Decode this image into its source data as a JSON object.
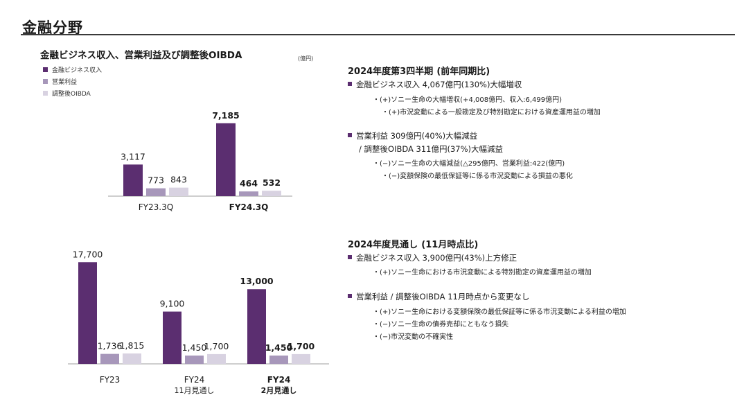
{
  "page_title": "金融分野",
  "chart_heading": "金融ビジネス収入、営業利益及び調整後OIBDA",
  "unit_label": "(億円)",
  "colors": {
    "revenue": "#5b2e70",
    "op_income": "#a797ba",
    "oibda": "#d8d2e1"
  },
  "legend": [
    "金融ビジネス収入",
    "営業利益",
    "調整後OIBDA"
  ],
  "chart_data": [
    {
      "type": "bar",
      "categories": [
        "FY23.3Q",
        "FY24.3Q"
      ],
      "bold_categories": [
        false,
        true
      ],
      "series": [
        {
          "name": "金融ビジネス収入",
          "values": [
            3117,
            7185
          ]
        },
        {
          "name": "営業利益",
          "values": [
            773,
            464
          ]
        },
        {
          "name": "調整後OIBDA",
          "values": [
            843,
            532
          ]
        }
      ],
      "value_labels": [
        [
          "3,117",
          "773",
          "843"
        ],
        [
          "7,185",
          "464",
          "532"
        ]
      ],
      "ylim": [
        0,
        8200
      ],
      "grid": false,
      "legend_position": "top-left"
    },
    {
      "type": "bar",
      "categories": [
        "FY23",
        "FY24\n11月見通し",
        "FY24\n2月見通し"
      ],
      "bold_categories": [
        false,
        false,
        true
      ],
      "series": [
        {
          "name": "金融ビジネス収入",
          "values": [
            17700,
            9100,
            13000
          ]
        },
        {
          "name": "営業利益",
          "values": [
            1736,
            1450,
            1450
          ]
        },
        {
          "name": "調整後OIBDA",
          "values": [
            1815,
            1700,
            1700
          ]
        }
      ],
      "value_labels": [
        [
          "17,700",
          "1,736",
          "1,815"
        ],
        [
          "9,100",
          "1,450",
          "1,700"
        ],
        [
          "13,000",
          "1,450",
          "1,700"
        ]
      ],
      "ylim": [
        0,
        19300
      ],
      "grid": false
    }
  ],
  "section1": {
    "heading": "2024年度第3四半期",
    "heading_sub": "(前年同期比)",
    "b1": "金融ビジネス収入  4,067億円(130%)大幅増収",
    "b1_s1": "・(+)ソニー生命の大幅増収(+4,008億円、収入:6,499億円)",
    "b1_s2": "・(+)市況変動による一般勘定及び特別勘定における資産運用益の増加",
    "b2": "営業利益  309億円(40%)大幅減益",
    "b2_cont": "/ 調整後OIBDA 311億円(37%)大幅減益",
    "b2_s1": "・(−)ソニー生命の大幅減益(△295億円、営業利益:422(億円)",
    "b2_s2": "・(−)変額保険の最低保証等に係る市況変動による損益の悪化"
  },
  "section2": {
    "heading": "2024年度見通し",
    "heading_sub": "(11月時点比)",
    "b1": "金融ビジネス収入  3,900億円(43%)上方修正",
    "b1_s1": "・(+)ソニー生命における市況変動による特別勘定の資産運用益の増加",
    "b2": "営業利益 / 調整後OIBDA  11月時点から変更なし",
    "b2_s1": "・(+)ソニー生命における変額保険の最低保証等に係る市況変動による利益の増加",
    "b2_s2": "・(−)ソニー生命の債券売却にともなう損失",
    "b2_s3": "・(−)市況変動の不確実性"
  }
}
